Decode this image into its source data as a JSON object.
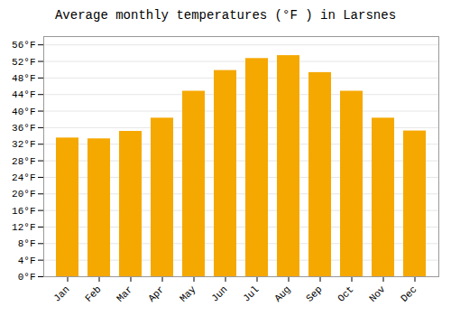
{
  "chart_data": {
    "type": "bar",
    "title": "Average monthly temperatures (°F ) in Larsnes",
    "categories": [
      "Jan",
      "Feb",
      "Mar",
      "Apr",
      "May",
      "Jun",
      "Jul",
      "Aug",
      "Sep",
      "Oct",
      "Nov",
      "Dec"
    ],
    "values": [
      33.5,
      33.3,
      35.1,
      38.3,
      44.8,
      49.8,
      52.7,
      53.4,
      49.3,
      44.8,
      38.3,
      35.2
    ],
    "color": "#F5A800",
    "ylim": [
      0,
      58
    ],
    "yticks": [
      {
        "value": 0,
        "label": "0°F"
      },
      {
        "value": 4,
        "label": "4°F"
      },
      {
        "value": 8,
        "label": "8°F"
      },
      {
        "value": 12,
        "label": "12°F"
      },
      {
        "value": 16,
        "label": "16°F"
      },
      {
        "value": 20,
        "label": "20°F"
      },
      {
        "value": 24,
        "label": "24°F"
      },
      {
        "value": 28,
        "label": "28°F"
      },
      {
        "value": 32,
        "label": "32°F"
      },
      {
        "value": 36,
        "label": "36°F"
      },
      {
        "value": 40,
        "label": "40°F"
      },
      {
        "value": 44,
        "label": "44°F"
      },
      {
        "value": 48,
        "label": "48°F"
      },
      {
        "value": 52,
        "label": "52°F"
      },
      {
        "value": 56,
        "label": "56°F"
      }
    ],
    "grid": true
  }
}
